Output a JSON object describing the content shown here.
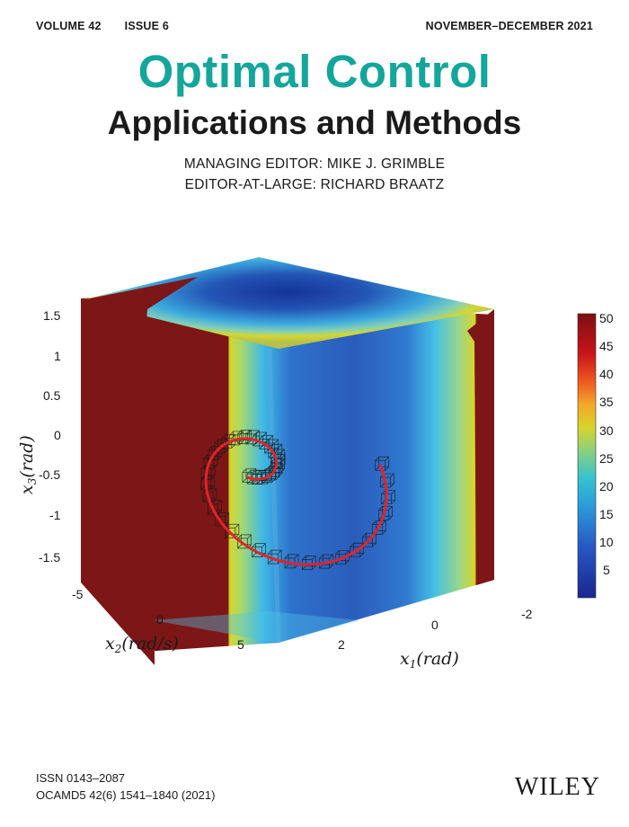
{
  "header": {
    "volume": "VOLUME 42",
    "issue": "ISSUE 6",
    "date": "NOVEMBER–DECEMBER 2021"
  },
  "title": {
    "line1": "Optimal Control",
    "line2": "Applications and Methods"
  },
  "editors": {
    "managing": "MANAGING EDITOR: MIKE J. GRIMBLE",
    "at_large": "EDITOR-AT-LARGE: RICHARD BRAATZ"
  },
  "figure": {
    "z_label": "x3(rad)",
    "x2_label": "x2(rad/s)",
    "x1_label": "x1(rad)",
    "z_ticks": [
      "1.5",
      "1",
      "0.5",
      "0",
      "-0.5",
      "-1",
      "-1.5"
    ],
    "x2_ticks": [
      "-5",
      "0",
      "5"
    ],
    "x1_ticks": [
      "2",
      "0",
      "-2"
    ],
    "colorbar_ticks": [
      "50",
      "45",
      "40",
      "35",
      "30",
      "25",
      "20",
      "15",
      "10",
      "5"
    ],
    "colors": {
      "dark_red": "#7d1616",
      "trajectory": "#e3232a",
      "blue_dark": "#15339a",
      "blue_mid": "#2d67c8",
      "cyan": "#3fb9e6",
      "yellow": "#d7d62a"
    }
  },
  "footer": {
    "issn": "ISSN 0143–2087",
    "code": "OCAMD5 42(6) 1541–1840 (2021)",
    "publisher": "WILEY"
  }
}
